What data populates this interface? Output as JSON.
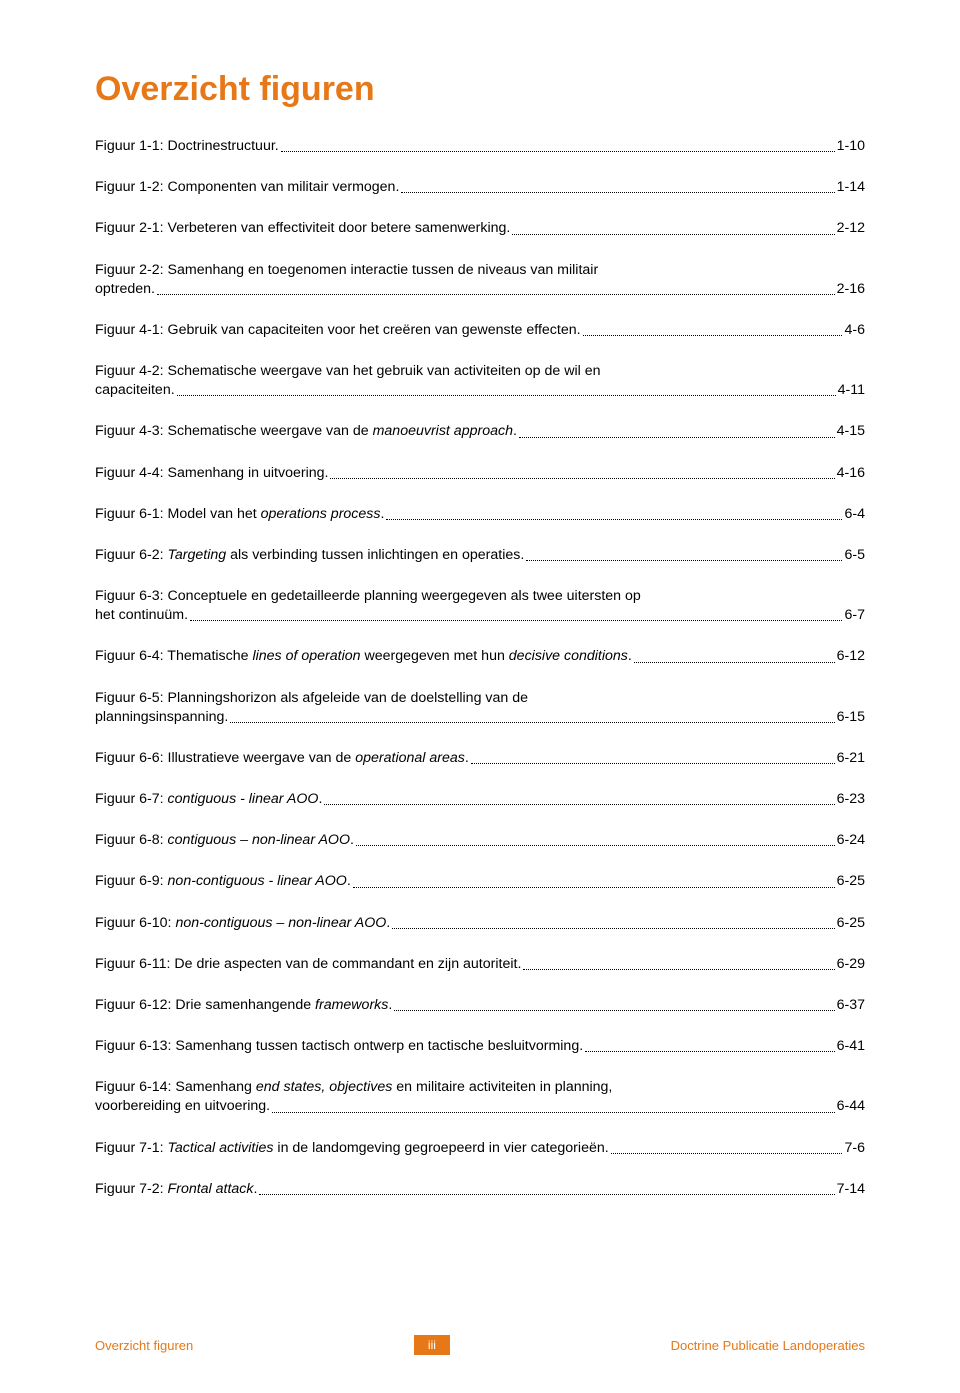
{
  "title": "Overzicht figuren",
  "colors": {
    "accent": "#e67817",
    "text": "#000000",
    "background": "#ffffff"
  },
  "typography": {
    "title_fontsize": 34,
    "body_fontsize": 14.2,
    "footer_fontsize": 13,
    "font_family": "Verdana"
  },
  "entries": [
    {
      "label_html": "Figuur 1-1: Doctrinestructuur.",
      "page": "1-10"
    },
    {
      "label_html": "Figuur 1-2: Componenten van militair vermogen.",
      "page": "1-14"
    },
    {
      "label_html": "Figuur 2-1: Verbeteren van effectiviteit door betere samenwerking.",
      "page": "2-12"
    },
    {
      "multiline": true,
      "line1": "Figuur 2-2: Samenhang en toegenomen interactie tussen de niveaus van militair",
      "line2": "optreden.",
      "page": "2-16"
    },
    {
      "label_html": "Figuur 4-1: Gebruik van capaciteiten voor het creëren van gewenste effecten.",
      "page": "4-6"
    },
    {
      "multiline": true,
      "line1": "Figuur 4-2: Schematische weergave van het gebruik van activiteiten op de wil en",
      "line2": "capaciteiten.",
      "page": "4-11"
    },
    {
      "label_html": "Figuur 4-3: Schematische weergave van de <i>manoeuvrist approach</i>.",
      "page": "4-15"
    },
    {
      "label_html": "Figuur 4-4: Samenhang in uitvoering.",
      "page": "4-16"
    },
    {
      "label_html": "Figuur 6-1: Model van het <i>operations process</i>.",
      "page": "6-4"
    },
    {
      "label_html": "Figuur 6-2: <i>Targeting</i> als verbinding tussen inlichtingen en operaties.",
      "page": "6-5"
    },
    {
      "multiline": true,
      "line1": "Figuur 6-3: Conceptuele en gedetailleerde planning weergegeven als twee uitersten op",
      "line2": "het continuüm.",
      "page": "6-7"
    },
    {
      "label_html": "Figuur 6-4: Thematische <i>lines of operation</i> weergegeven met hun <i>decisive conditions</i>.",
      "page": "6-12"
    },
    {
      "multiline": true,
      "line1": "Figuur 6-5: Planningshorizon als afgeleide van de doelstelling van de",
      "line2": "planningsinspanning.",
      "page": "6-15"
    },
    {
      "label_html": "Figuur 6-6: Illustratieve weergave van de <i>operational areas</i>.",
      "page": "6-21"
    },
    {
      "label_html": "Figuur 6-7: <i>contiguous - linear AOO</i>.",
      "page": "6-23"
    },
    {
      "label_html": "Figuur 6-8: <i>contiguous – non-linear AOO</i>.",
      "page": "6-24"
    },
    {
      "label_html": "Figuur 6-9: <i>non-contiguous - linear AOO</i>.",
      "page": "6-25"
    },
    {
      "label_html": "Figuur 6-10: <i>non-contiguous – non-linear AOO</i>.",
      "page": "6-25"
    },
    {
      "label_html": "Figuur 6-11: De drie aspecten van de commandant en zijn autoriteit.",
      "page": "6-29"
    },
    {
      "label_html": "Figuur 6-12: Drie samenhangende <i>frameworks</i>.",
      "page": "6-37"
    },
    {
      "label_html": "Figuur 6-13: Samenhang tussen tactisch ontwerp en tactische besluitvorming.",
      "page": "6-41"
    },
    {
      "multiline": true,
      "line1_html": "Figuur 6-14: Samenhang <i>end states, objectives</i> en militaire activiteiten in planning,",
      "line2": "voorbereiding en uitvoering.",
      "page": "6-44"
    },
    {
      "label_html": "Figuur 7-1: <i>Tactical activities</i> in de landomgeving gegroepeerd in vier categorieën.",
      "page": "7-6"
    },
    {
      "label_html": "Figuur 7-2: <i>Frontal attack</i>.",
      "page": "7-14"
    }
  ],
  "footer": {
    "left": "Overzicht figuren",
    "center": "iii",
    "right": "Doctrine Publicatie Landoperaties"
  }
}
